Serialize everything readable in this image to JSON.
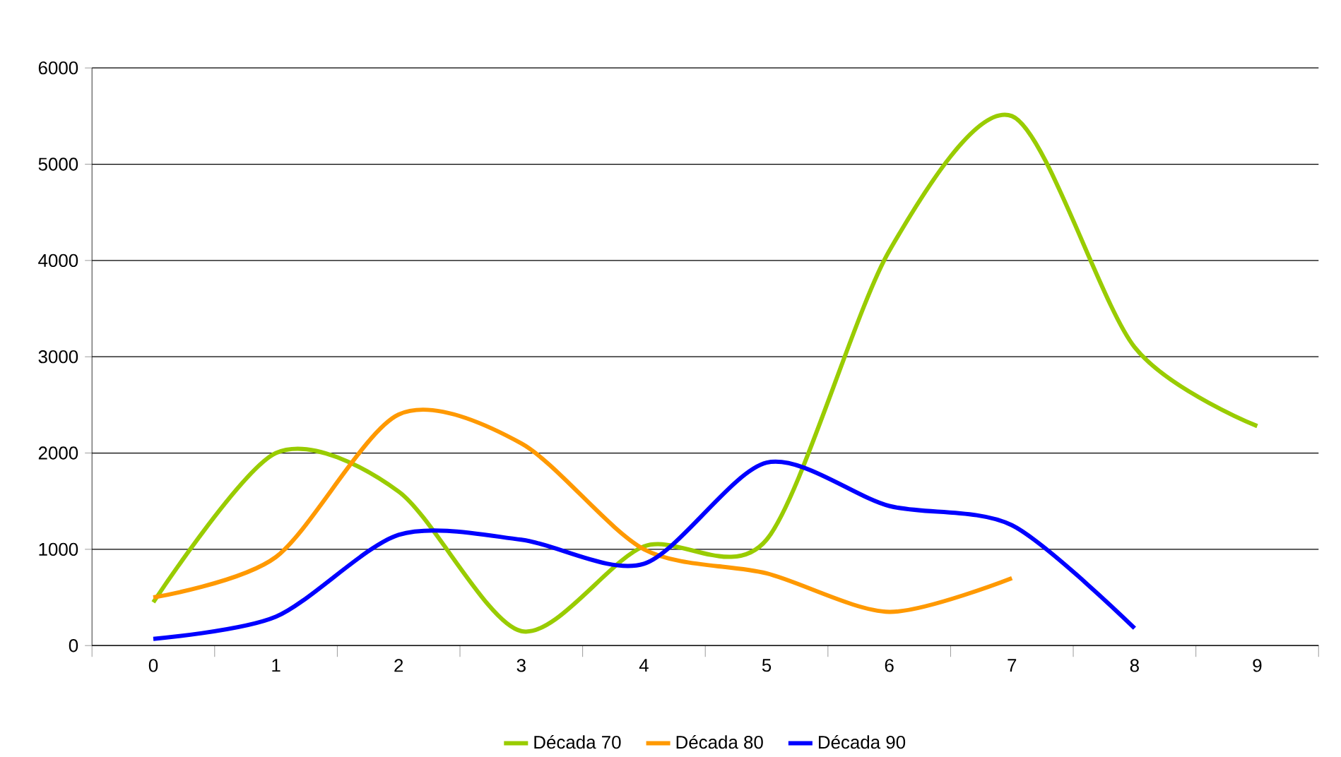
{
  "chart_data": {
    "type": "line",
    "categories": [
      "0",
      "1",
      "2",
      "3",
      "4",
      "5",
      "6",
      "7",
      "8",
      "9"
    ],
    "series": [
      {
        "name": "Década 70",
        "color": "#99cc00",
        "values": [
          450,
          2000,
          1600,
          150,
          1030,
          1100,
          4100,
          5500,
          3100,
          2280
        ]
      },
      {
        "name": "Década 80",
        "color": "#ff9900",
        "values": [
          500,
          920,
          2400,
          2100,
          1000,
          750,
          350,
          700,
          null,
          null
        ]
      },
      {
        "name": "Década 90",
        "color": "#0000ff",
        "values": [
          70,
          300,
          1150,
          1100,
          850,
          1900,
          1450,
          1250,
          180,
          null
        ]
      }
    ],
    "ylim": [
      0,
      6000
    ],
    "yticks": [
      0,
      1000,
      2000,
      3000,
      4000,
      5000,
      6000
    ],
    "grid": "y",
    "legend": "bottom"
  }
}
